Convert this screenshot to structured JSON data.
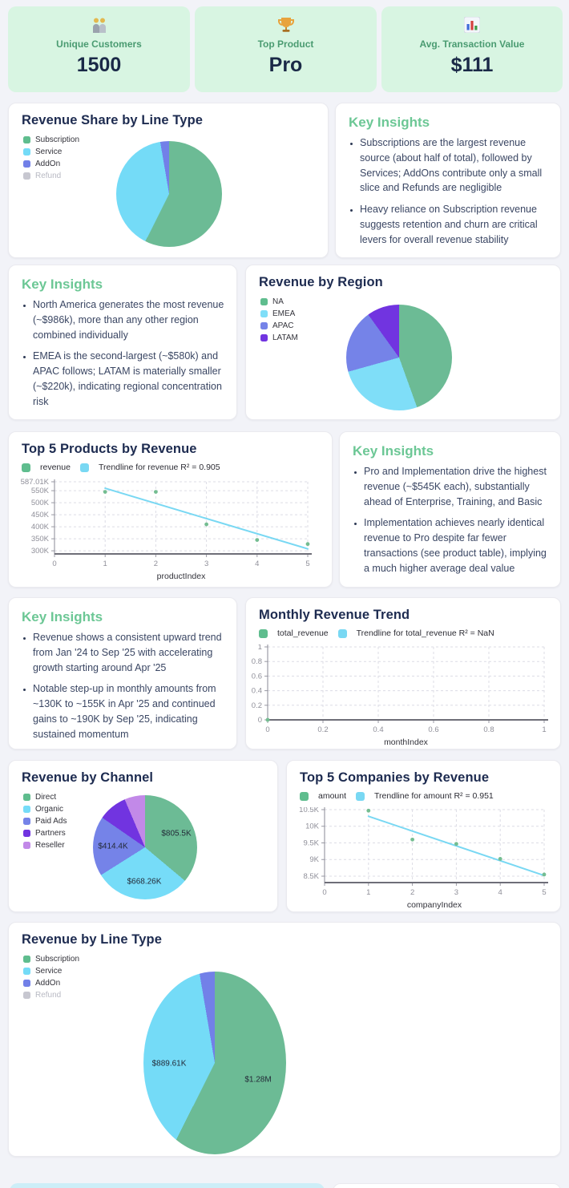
{
  "theme": {
    "page_bg": "#f2f3f8",
    "kpi_bg": "#d8f5e2",
    "kpi_label_color": "#4a9b71",
    "kpi_value_color": "#1a2947",
    "title_color": "#1d2b50",
    "insight_heading_color": "#6cc795",
    "table_header_color": "#cdeef8"
  },
  "kpi_cards": [
    {
      "icon": "people-icon",
      "label": "Unique Customers",
      "value": "1500"
    },
    {
      "icon": "trophy-icon",
      "label": "Top Product",
      "value": "Pro"
    },
    {
      "icon": "bar-chart-icon",
      "label": "Avg. Transaction Value",
      "value": "$111"
    }
  ],
  "insights": [
    {
      "title": "Key Insights",
      "bullets": [
        "Subscriptions are the largest revenue source (about half of total), followed by Services; AddOns contribute only a small slice and Refunds are negligible",
        "Heavy reliance on Subscription revenue suggests retention and churn are critical levers for overall revenue stability"
      ]
    },
    {
      "title": "Key Insights",
      "bullets": [
        "North America generates the most revenue (~$986k), more than any other region combined individually",
        "EMEA is the second-largest (~$580k) and APAC follows; LATAM is materially smaller (~$220k), indicating regional concentration risk"
      ]
    },
    {
      "title": "Key Insights",
      "bullets": [
        "Pro and Implementation drive the highest revenue (~$545K each), substantially ahead of Enterprise, Training, and Basic",
        "Implementation achieves nearly identical revenue to Pro despite far fewer transactions (see product table), implying a much higher average deal value"
      ]
    },
    {
      "title": "Key Insights",
      "bullets": [
        "Revenue shows a consistent upward trend from Jan '24 to Sep '25 with accelerating growth starting around Apr '25",
        "Notable step-up in monthly amounts from ~130K to ~155K in Apr '25 and continued gains to ~190K by Sep '25, indicating sustained momentum"
      ]
    }
  ],
  "chart_data": [
    {
      "type": "pie",
      "title": "Revenue Share by Line Type",
      "slices": [
        {
          "label": "Subscription",
          "value": 1280000,
          "color": "#6cbb95"
        },
        {
          "label": "Service",
          "value": 889610,
          "color": "#74dbf7"
        },
        {
          "label": "AddOn",
          "value": 60000,
          "color": "#7280e8"
        }
      ],
      "legend": [
        {
          "label": "Subscription",
          "color": "#5fbd8e"
        },
        {
          "label": "Service",
          "color": "#74dbf7"
        },
        {
          "label": "AddOn",
          "color": "#7280e8"
        },
        {
          "label": "Refund",
          "color": "#c7c7d0",
          "muted": true
        }
      ],
      "value_labels": []
    },
    {
      "type": "pie",
      "title": "Revenue by Region",
      "slices": [
        {
          "label": "NA",
          "value": 986000,
          "color": "#6cbb95"
        },
        {
          "label": "EMEA",
          "value": 580000,
          "color": "#7fdef8"
        },
        {
          "label": "APAC",
          "value": 430000,
          "color": "#7583e8"
        },
        {
          "label": "LATAM",
          "value": 220000,
          "color": "#7134e0"
        }
      ],
      "legend": [
        {
          "label": "NA",
          "color": "#5fbd8e"
        },
        {
          "label": "EMEA",
          "color": "#7fdef8"
        },
        {
          "label": "APAC",
          "color": "#7583e8"
        },
        {
          "label": "LATAM",
          "color": "#7134e0"
        }
      ],
      "value_labels": []
    },
    {
      "type": "scatter",
      "title": "Top 5 Products by Revenue",
      "series_label": "revenue",
      "trend_label": "Trendline for revenue R² = 0.905",
      "series_color": "#5fbd8e",
      "trend_color": "#79d8f3",
      "point_color": "#74bd91",
      "xlabel": "productIndex",
      "xlim": [
        0,
        5
      ],
      "ylim": [
        287010,
        587010
      ],
      "xticks": [
        [
          0,
          "0"
        ],
        [
          1,
          "1"
        ],
        [
          2,
          "2"
        ],
        [
          3,
          "3"
        ],
        [
          4,
          "4"
        ],
        [
          5,
          "5"
        ]
      ],
      "yticks": [
        [
          587010,
          "587.01K"
        ],
        [
          550000,
          "550K"
        ],
        [
          500000,
          "500K"
        ],
        [
          450000,
          "450K"
        ],
        [
          400000,
          "400K"
        ],
        [
          350000,
          "350K"
        ],
        [
          300000,
          "300K"
        ]
      ],
      "points": [
        [
          1,
          545000
        ],
        [
          2,
          545000
        ],
        [
          3,
          410000
        ],
        [
          4,
          345000
        ],
        [
          5,
          328000
        ]
      ],
      "trend": [
        [
          1,
          560000
        ],
        [
          5,
          308000
        ]
      ]
    },
    {
      "type": "scatter",
      "title": "Monthly Revenue Trend",
      "series_label": "total_revenue",
      "trend_label": "Trendline for total_revenue R² = NaN",
      "series_color": "#5fbd8e",
      "trend_color": "#79d8f3",
      "point_color": "#74bd91",
      "xlabel": "monthIndex",
      "xlim": [
        0,
        1
      ],
      "ylim": [
        0,
        1
      ],
      "xticks": [
        [
          0,
          "0"
        ],
        [
          0.2,
          "0.2"
        ],
        [
          0.4,
          "0.4"
        ],
        [
          0.6,
          "0.6"
        ],
        [
          0.8,
          "0.8"
        ],
        [
          1,
          "1"
        ]
      ],
      "yticks": [
        [
          1,
          "1"
        ],
        [
          0.8,
          "0.8"
        ],
        [
          0.6,
          "0.6"
        ],
        [
          0.4,
          "0.4"
        ],
        [
          0.2,
          "0.2"
        ],
        [
          0,
          "0"
        ]
      ],
      "points": [
        [
          0,
          0
        ]
      ],
      "trend": null
    },
    {
      "type": "pie",
      "title": "Revenue by Channel",
      "slices": [
        {
          "label": "Direct",
          "value": 805500,
          "color": "#6cbb95"
        },
        {
          "label": "Organic",
          "value": 668260,
          "color": "#76dcf8"
        },
        {
          "label": "Paid Ads",
          "value": 414400,
          "color": "#7583e8"
        },
        {
          "label": "Partners",
          "value": 200000,
          "color": "#7134e0"
        },
        {
          "label": "Reseller",
          "value": 143000,
          "color": "#c289e8"
        }
      ],
      "legend": [
        {
          "label": "Direct",
          "color": "#5fbd8e"
        },
        {
          "label": "Organic",
          "color": "#76dcf8"
        },
        {
          "label": "Paid Ads",
          "color": "#7583e8"
        },
        {
          "label": "Partners",
          "color": "#7134e0"
        },
        {
          "label": "Reseller",
          "color": "#c289e8"
        }
      ],
      "value_labels": [
        "$805.5K",
        "$668.26K",
        "$414.4K"
      ]
    },
    {
      "type": "scatter",
      "title": "Top 5 Companies by Revenue",
      "series_label": "amount",
      "trend_label": "Trendline for amount R² = 0.951",
      "series_color": "#5fbd8e",
      "trend_color": "#79d8f3",
      "point_color": "#74bd91",
      "xlabel": "companyIndex",
      "xlim": [
        0,
        5
      ],
      "ylim": [
        8307,
        10500
      ],
      "xticks": [
        [
          0,
          "0"
        ],
        [
          1,
          "1"
        ],
        [
          2,
          "2"
        ],
        [
          3,
          "3"
        ],
        [
          4,
          "4"
        ],
        [
          5,
          "5"
        ]
      ],
      "yticks": [
        [
          10500,
          "10.5K"
        ],
        [
          10000,
          "10K"
        ],
        [
          9500,
          "9.5K"
        ],
        [
          9000,
          "9K"
        ],
        [
          8500,
          "8.5K"
        ]
      ],
      "points": [
        [
          1,
          10470
        ],
        [
          2,
          9600
        ],
        [
          3,
          9470
        ],
        [
          4,
          9020
        ],
        [
          5,
          8550
        ]
      ],
      "trend": [
        [
          1,
          10300
        ],
        [
          5,
          8520
        ]
      ]
    },
    {
      "type": "pie",
      "title": "Revenue by Line Type",
      "slices": [
        {
          "label": "Subscription",
          "value": 1280000,
          "color": "#6cbb95"
        },
        {
          "label": "Service",
          "value": 889610,
          "color": "#74dbf7"
        },
        {
          "label": "AddOn",
          "value": 60000,
          "color": "#7280e8"
        }
      ],
      "legend": [
        {
          "label": "Subscription",
          "color": "#5fbd8e"
        },
        {
          "label": "Service",
          "color": "#74dbf7"
        },
        {
          "label": "AddOn",
          "color": "#7280e8"
        },
        {
          "label": "Refund",
          "color": "#c7c7d0",
          "muted": true
        }
      ],
      "value_labels": [
        "$889.61K",
        "$1.28M"
      ]
    }
  ]
}
